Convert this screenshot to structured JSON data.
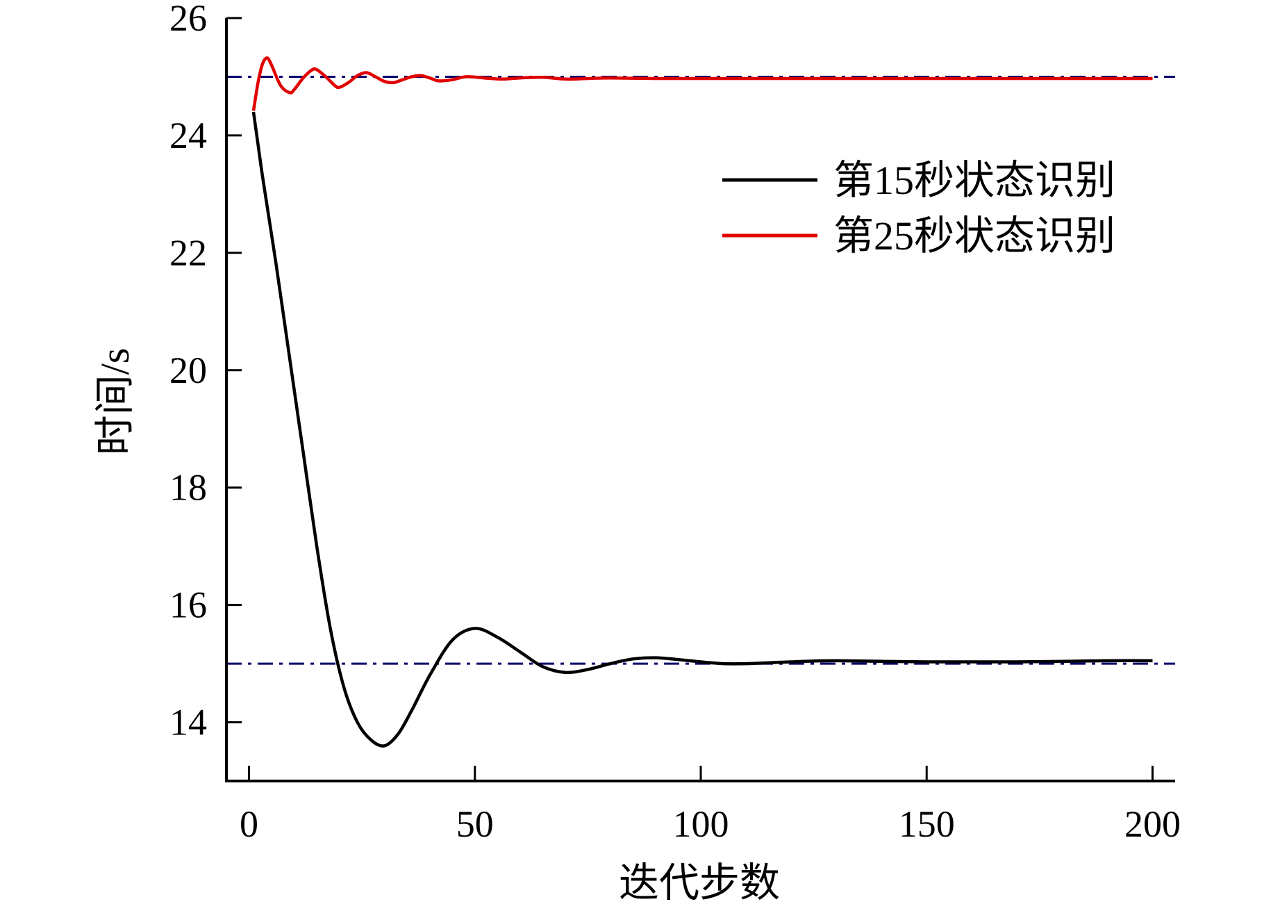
{
  "chart_data": {
    "type": "line",
    "title": "",
    "xlabel": "迭代步数",
    "ylabel": "时间/s",
    "xlim": [
      -5,
      205
    ],
    "ylim": [
      13,
      26
    ],
    "xticks": [
      0,
      50,
      100,
      150,
      200
    ],
    "yticks": [
      14,
      16,
      18,
      20,
      22,
      24,
      26
    ],
    "grid": false,
    "legend_position": "upper-right",
    "series": [
      {
        "name": "第15秒状态识别",
        "color": "#000000",
        "x": [
          1,
          3,
          6,
          9,
          12,
          15,
          18,
          21,
          24,
          27,
          30,
          33,
          36,
          40,
          45,
          50,
          55,
          60,
          65,
          70,
          75,
          80,
          85,
          90,
          95,
          100,
          105,
          110,
          120,
          130,
          150,
          170,
          190,
          200
        ],
        "y": [
          24.4,
          23.3,
          21.8,
          20.2,
          18.6,
          17.0,
          15.6,
          14.6,
          14.0,
          13.7,
          13.6,
          13.8,
          14.2,
          14.8,
          15.4,
          15.6,
          15.45,
          15.2,
          14.95,
          14.85,
          14.9,
          15.0,
          15.08,
          15.1,
          15.07,
          15.03,
          15.0,
          15.0,
          15.03,
          15.05,
          15.03,
          15.03,
          15.05,
          15.05
        ]
      },
      {
        "name": "第25秒状态识别",
        "color": "#e00000",
        "x": [
          1,
          2,
          3,
          4,
          5,
          7,
          9,
          10,
          12,
          14,
          15,
          17,
          19,
          20,
          22,
          24,
          26,
          28,
          30,
          32,
          34,
          36,
          38,
          40,
          42,
          45,
          48,
          52,
          56,
          60,
          65,
          70,
          75,
          80,
          90,
          100,
          120,
          150,
          180,
          200
        ],
        "y": [
          24.42,
          24.9,
          25.22,
          25.32,
          25.2,
          24.85,
          24.73,
          24.78,
          24.98,
          25.12,
          25.12,
          25.0,
          24.85,
          24.82,
          24.9,
          25.02,
          25.07,
          25.0,
          24.92,
          24.9,
          24.95,
          25.0,
          25.02,
          24.98,
          24.93,
          24.95,
          25.0,
          24.98,
          24.96,
          24.98,
          24.99,
          24.96,
          24.97,
          24.98,
          24.97,
          24.97,
          24.97,
          24.97,
          24.97,
          24.97
        ]
      }
    ],
    "reference_lines": [
      {
        "y": 25.0,
        "color": "#00006e",
        "style": "dash-dot"
      },
      {
        "y": 15.0,
        "color": "#00006e",
        "style": "dash-dot"
      }
    ]
  }
}
